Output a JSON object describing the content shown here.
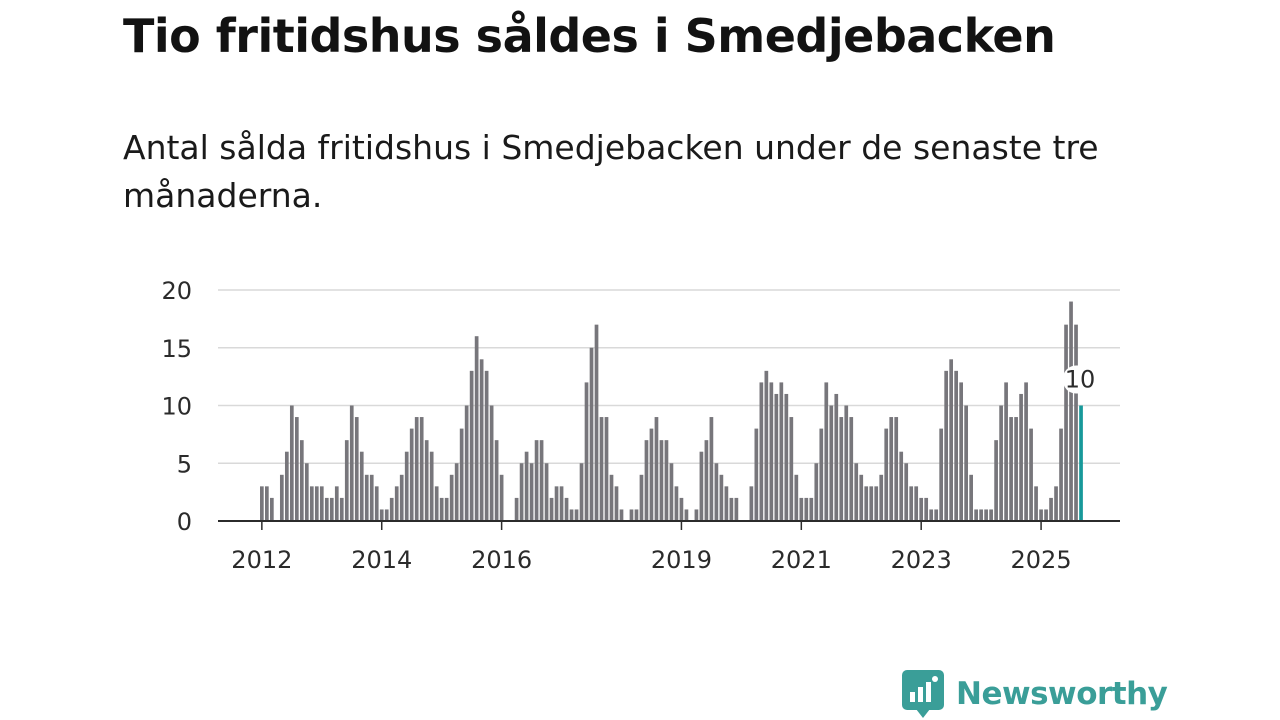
{
  "title": "Tio fritidshus såldes i Smedjebacken",
  "subtitle": "Antal sålda fritidshus i Smedjebacken under de senaste tre månaderna.",
  "brand": {
    "name": "Newsworthy",
    "color": "#3a9e98"
  },
  "colors": {
    "bar": "#77767b",
    "highlight": "#17999a",
    "grid": "#d9d9d9",
    "axis": "#2b2b2b"
  },
  "chart_data": {
    "type": "bar",
    "x_axis": "time",
    "x_ticks": [
      "2012",
      "2014",
      "2016",
      "2019",
      "2021",
      "2023",
      "2025"
    ],
    "y_ticks": [
      "0",
      "5",
      "10",
      "15",
      "20"
    ],
    "ylim": [
      0,
      20
    ],
    "grid": true,
    "highlight_label": "10",
    "series": [
      {
        "values": [
          3,
          3,
          2,
          0,
          4,
          6,
          10,
          9,
          7,
          5,
          3,
          3,
          3,
          2,
          2,
          3,
          2,
          7,
          10,
          9,
          6,
          4,
          4,
          3,
          1,
          1,
          2,
          3,
          4,
          6,
          8,
          9,
          9,
          7,
          6,
          3,
          2,
          2,
          4,
          5,
          8,
          10,
          13,
          16,
          14,
          13,
          10,
          7,
          4,
          0,
          0,
          2,
          5,
          6,
          5,
          7,
          7,
          5,
          2,
          3,
          3,
          2,
          1,
          1,
          5,
          12,
          15,
          17,
          9,
          9,
          4,
          3,
          1,
          0,
          1,
          1,
          4,
          7,
          8,
          9,
          7,
          7,
          5,
          3,
          2,
          1,
          0,
          1,
          6,
          7,
          9,
          5,
          4,
          3,
          2,
          2,
          0,
          0,
          3,
          8,
          12,
          13,
          12,
          11,
          12,
          11,
          9,
          4,
          2,
          2,
          2,
          5,
          8,
          12,
          10,
          11,
          9,
          10,
          9,
          5,
          4,
          3,
          3,
          3,
          4,
          8,
          9,
          9,
          6,
          5,
          3,
          3,
          2,
          2,
          1,
          1,
          8,
          13,
          14,
          13,
          12,
          10,
          4,
          1,
          1,
          1,
          1,
          7,
          10,
          12,
          9,
          9,
          11,
          12,
          8,
          3,
          1,
          1,
          2,
          3,
          8,
          17,
          19,
          17,
          10
        ]
      }
    ]
  }
}
